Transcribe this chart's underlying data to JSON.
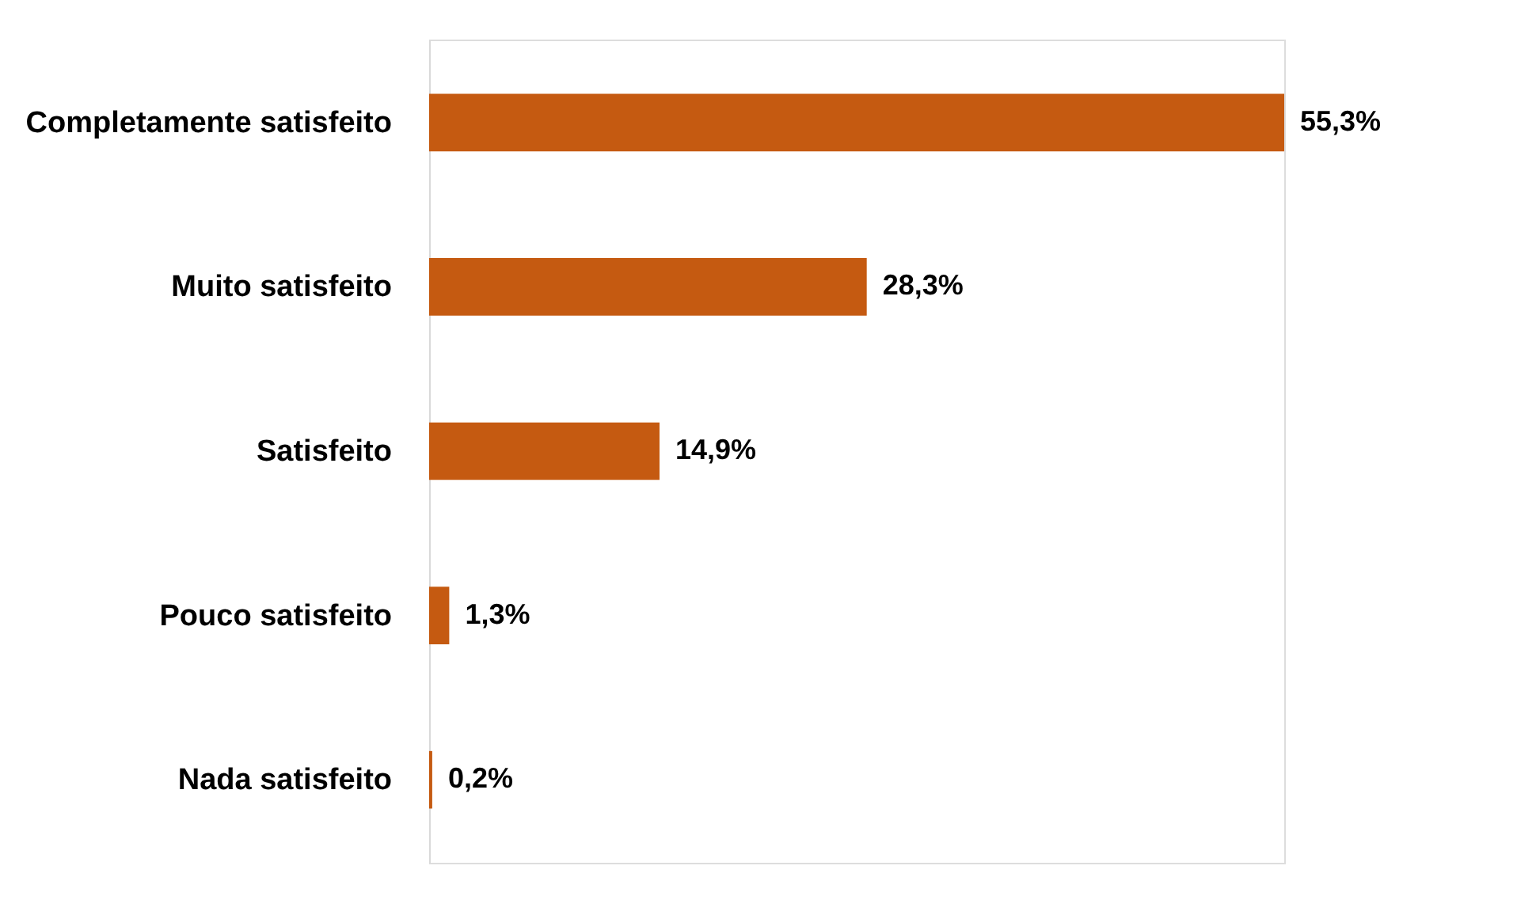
{
  "chart_data": {
    "type": "bar",
    "orientation": "horizontal",
    "categories": [
      "Completamente satisfeito",
      "Muito satisfeito",
      "Satisfeito",
      "Pouco satisfeito",
      "Nada satisfeito"
    ],
    "values": [
      55.3,
      28.3,
      14.9,
      1.3,
      0.2
    ],
    "value_labels": [
      "55,3%",
      "28,3%",
      "14,9%",
      "1,3%",
      "0,2%"
    ],
    "color": "#c55a11"
  }
}
